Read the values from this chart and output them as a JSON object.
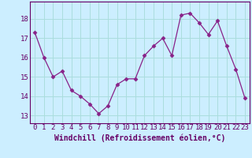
{
  "x": [
    0,
    1,
    2,
    3,
    4,
    5,
    6,
    7,
    8,
    9,
    10,
    11,
    12,
    13,
    14,
    15,
    16,
    17,
    18,
    19,
    20,
    21,
    22,
    23
  ],
  "y": [
    17.3,
    16.0,
    15.0,
    15.3,
    14.3,
    14.0,
    13.6,
    13.1,
    13.5,
    14.6,
    14.9,
    14.9,
    16.1,
    16.6,
    17.0,
    16.1,
    18.2,
    18.3,
    17.8,
    17.2,
    17.9,
    16.6,
    15.4,
    13.9
  ],
  "line_color": "#882288",
  "marker": "D",
  "marker_size": 2.5,
  "bg_color": "#cceeff",
  "grid_color": "#aadddd",
  "ylabel_ticks": [
    13,
    14,
    15,
    16,
    17,
    18
  ],
  "xlabel": "Windchill (Refroidissement éolien,°C)",
  "xlabel_fontsize": 7,
  "tick_fontsize": 6.5,
  "ylim": [
    12.6,
    18.9
  ],
  "xlim": [
    -0.5,
    23.5
  ]
}
